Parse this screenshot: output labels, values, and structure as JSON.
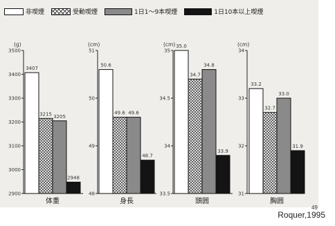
{
  "legend": [
    {
      "label": "非喫煙"
    },
    {
      "label": "受動喫煙"
    },
    {
      "label": "1日1～9本喫煙"
    },
    {
      "label": "1日10本以上喫煙"
    }
  ],
  "source": "Roquer,1995",
  "page_number": "49",
  "chart_data": [
    {
      "type": "bar",
      "unit": "(g)",
      "xlabel": "体重",
      "ylim": [
        2900,
        3500
      ],
      "ticks": [
        "2900",
        "3000",
        "3100",
        "3200",
        "3300",
        "3400",
        "3500"
      ],
      "categories": [
        "非喫煙",
        "受動喫煙",
        "1日1～9本喫煙",
        "1日10本以上喫煙"
      ],
      "values": [
        3407,
        3215,
        3205,
        2948
      ],
      "labels": [
        "3407",
        "3215",
        "3205",
        "2948"
      ]
    },
    {
      "type": "bar",
      "unit": "(cm)",
      "xlabel": "身長",
      "ylim": [
        48,
        51
      ],
      "ticks": [
        "48",
        "49",
        "50",
        "51"
      ],
      "categories": [
        "非喫煙",
        "受動喫煙",
        "1日1～9本喫煙",
        "1日10本以上喫煙"
      ],
      "values": [
        50.6,
        49.6,
        49.6,
        48.7
      ],
      "labels": [
        "50.6",
        "49.6",
        "49.6",
        "48.7"
      ]
    },
    {
      "type": "bar",
      "unit": "(cm)",
      "xlabel": "頭囲",
      "ylim": [
        33.5,
        35
      ],
      "ticks": [
        "33.5",
        "34",
        "34.5",
        "35"
      ],
      "categories": [
        "非喫煙",
        "受動喫煙",
        "1日1～9本喫煙",
        "1日10本以上喫煙"
      ],
      "values": [
        35.0,
        34.7,
        34.8,
        33.9
      ],
      "labels": [
        "35.0",
        "34.7",
        "34.8",
        "33.9"
      ]
    },
    {
      "type": "bar",
      "unit": "(cm)",
      "xlabel": "胸囲",
      "ylim": [
        31,
        34
      ],
      "ticks": [
        "31",
        "32",
        "33",
        "34"
      ],
      "categories": [
        "非喫煙",
        "受動喫煙",
        "1日1～9本喫煙",
        "1日10本以上喫煙"
      ],
      "values": [
        33.2,
        32.7,
        33.0,
        31.9
      ],
      "labels": [
        "33.2",
        "32.7",
        "33.0",
        "31.9"
      ]
    }
  ]
}
